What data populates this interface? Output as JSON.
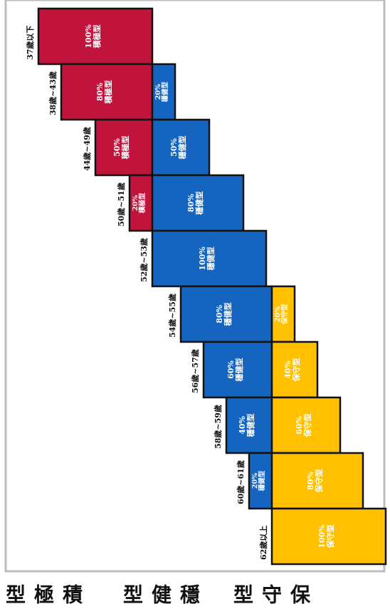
{
  "chart_data": {
    "type": "bar",
    "orientation": "stacked-horizontal-rotated",
    "categories": [
      "37歲以下",
      "38歲~43歲",
      "44歲~49歲",
      "50歲~51歲",
      "52歲~53歲",
      "54歲~55歲",
      "56歲~57歲",
      "58歲~59歲",
      "60歲~61歲",
      "62歲以上"
    ],
    "series": [
      {
        "name": "積極型",
        "color": "#c0143c",
        "values": [
          100,
          80,
          50,
          20,
          0,
          0,
          0,
          0,
          0,
          0
        ]
      },
      {
        "name": "穩健型",
        "color": "#1565c0",
        "values": [
          0,
          20,
          50,
          80,
          100,
          80,
          60,
          40,
          20,
          0
        ]
      },
      {
        "name": "保守型",
        "color": "#ffc000",
        "values": [
          0,
          0,
          0,
          0,
          0,
          20,
          40,
          60,
          80,
          100
        ]
      }
    ],
    "percent_format": "{v}%",
    "legend": [
      "積極型",
      "穩健型",
      "保守型"
    ],
    "legend_placement": "bottom"
  }
}
